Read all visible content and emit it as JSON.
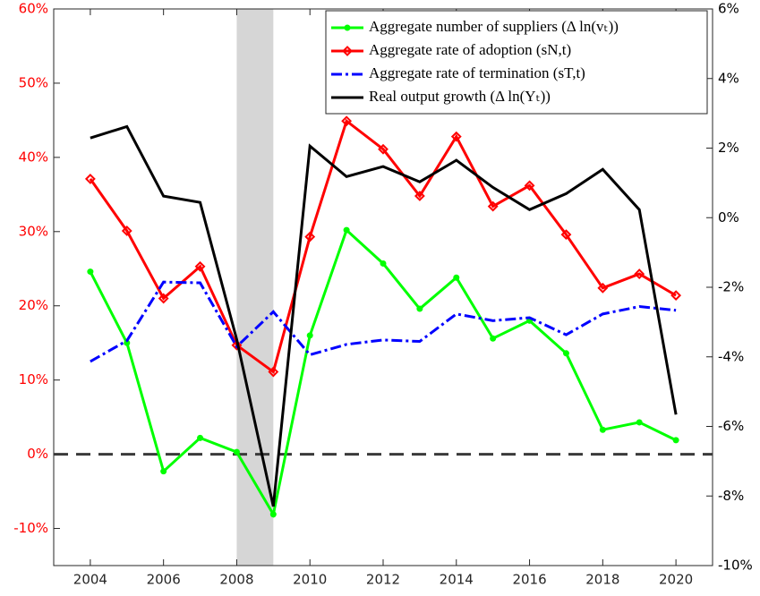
{
  "chart_data": {
    "type": "line",
    "x": [
      2004,
      2005,
      2006,
      2007,
      2008,
      2009,
      2010,
      2011,
      2012,
      2013,
      2014,
      2015,
      2016,
      2017,
      2018,
      2019,
      2020
    ],
    "xlim": [
      2003,
      2021
    ],
    "xticks": [
      2004,
      2006,
      2008,
      2010,
      2012,
      2014,
      2016,
      2018,
      2020
    ],
    "ylim": [
      -15,
      60
    ],
    "yticks": [
      {
        "value": -10,
        "label": "-10%"
      },
      {
        "value": 0,
        "label": "0%"
      },
      {
        "value": 10,
        "label": "10%"
      },
      {
        "value": 20,
        "label": "20%"
      },
      {
        "value": 30,
        "label": "30%"
      },
      {
        "value": 40,
        "label": "40%"
      },
      {
        "value": 50,
        "label": "50%"
      },
      {
        "value": 60,
        "label": "60%"
      }
    ],
    "y2lim": [
      -10,
      6
    ],
    "y2ticks": [
      {
        "value": -10,
        "label": "-10%"
      },
      {
        "value": -8,
        "label": "-8%"
      },
      {
        "value": -6,
        "label": "-6%"
      },
      {
        "value": -4,
        "label": "-4%"
      },
      {
        "value": -2,
        "label": "-2%"
      },
      {
        "value": 0,
        "label": "0%"
      },
      {
        "value": 2,
        "label": "2%"
      },
      {
        "value": 4,
        "label": "4%"
      },
      {
        "value": 6,
        "label": "6%"
      }
    ],
    "left_axis_color": "#ff0000",
    "reference_line": 0,
    "shaded_region": [
      2008,
      2009
    ],
    "legend": "upper right",
    "series": [
      {
        "name": "Aggregate number of suppliers (Δ ln(vₜ))",
        "color": "#00ff00",
        "marker": "dot",
        "style": "solid",
        "values": [
          24.6,
          15.0,
          -2.3,
          2.2,
          0.3,
          -8.1,
          16.0,
          30.2,
          25.7,
          19.6,
          23.8,
          15.6,
          18.0,
          13.6,
          3.3,
          4.3,
          1.9
        ]
      },
      {
        "name": "Aggregate rate of adoption (sN,t)",
        "color": "#ff0000",
        "marker": "diamond",
        "style": "solid",
        "values": [
          37.1,
          30.1,
          21.0,
          25.3,
          14.7,
          11.1,
          29.3,
          44.9,
          41.1,
          34.8,
          42.8,
          33.4,
          36.2,
          29.6,
          22.4,
          24.3,
          21.4
        ]
      },
      {
        "name": "Aggregate rate of termination (sT,t)",
        "color": "#0000ff",
        "marker": "none",
        "style": "dashdot",
        "values": [
          12.5,
          15.3,
          23.2,
          23.1,
          14.5,
          19.2,
          13.4,
          14.8,
          15.4,
          15.2,
          18.9,
          18.0,
          18.4,
          16.1,
          18.9,
          19.9,
          19.4
        ]
      },
      {
        "name": "Real output growth (Δ ln(Yₜ))",
        "color": "#000000",
        "marker": "none",
        "style": "solid",
        "axis": "y2",
        "values": [
          2.29,
          2.62,
          0.62,
          0.44,
          -3.5,
          -8.3,
          2.06,
          1.18,
          1.47,
          1.03,
          1.65,
          0.87,
          0.23,
          0.69,
          1.39,
          0.23,
          -5.66
        ]
      }
    ]
  }
}
